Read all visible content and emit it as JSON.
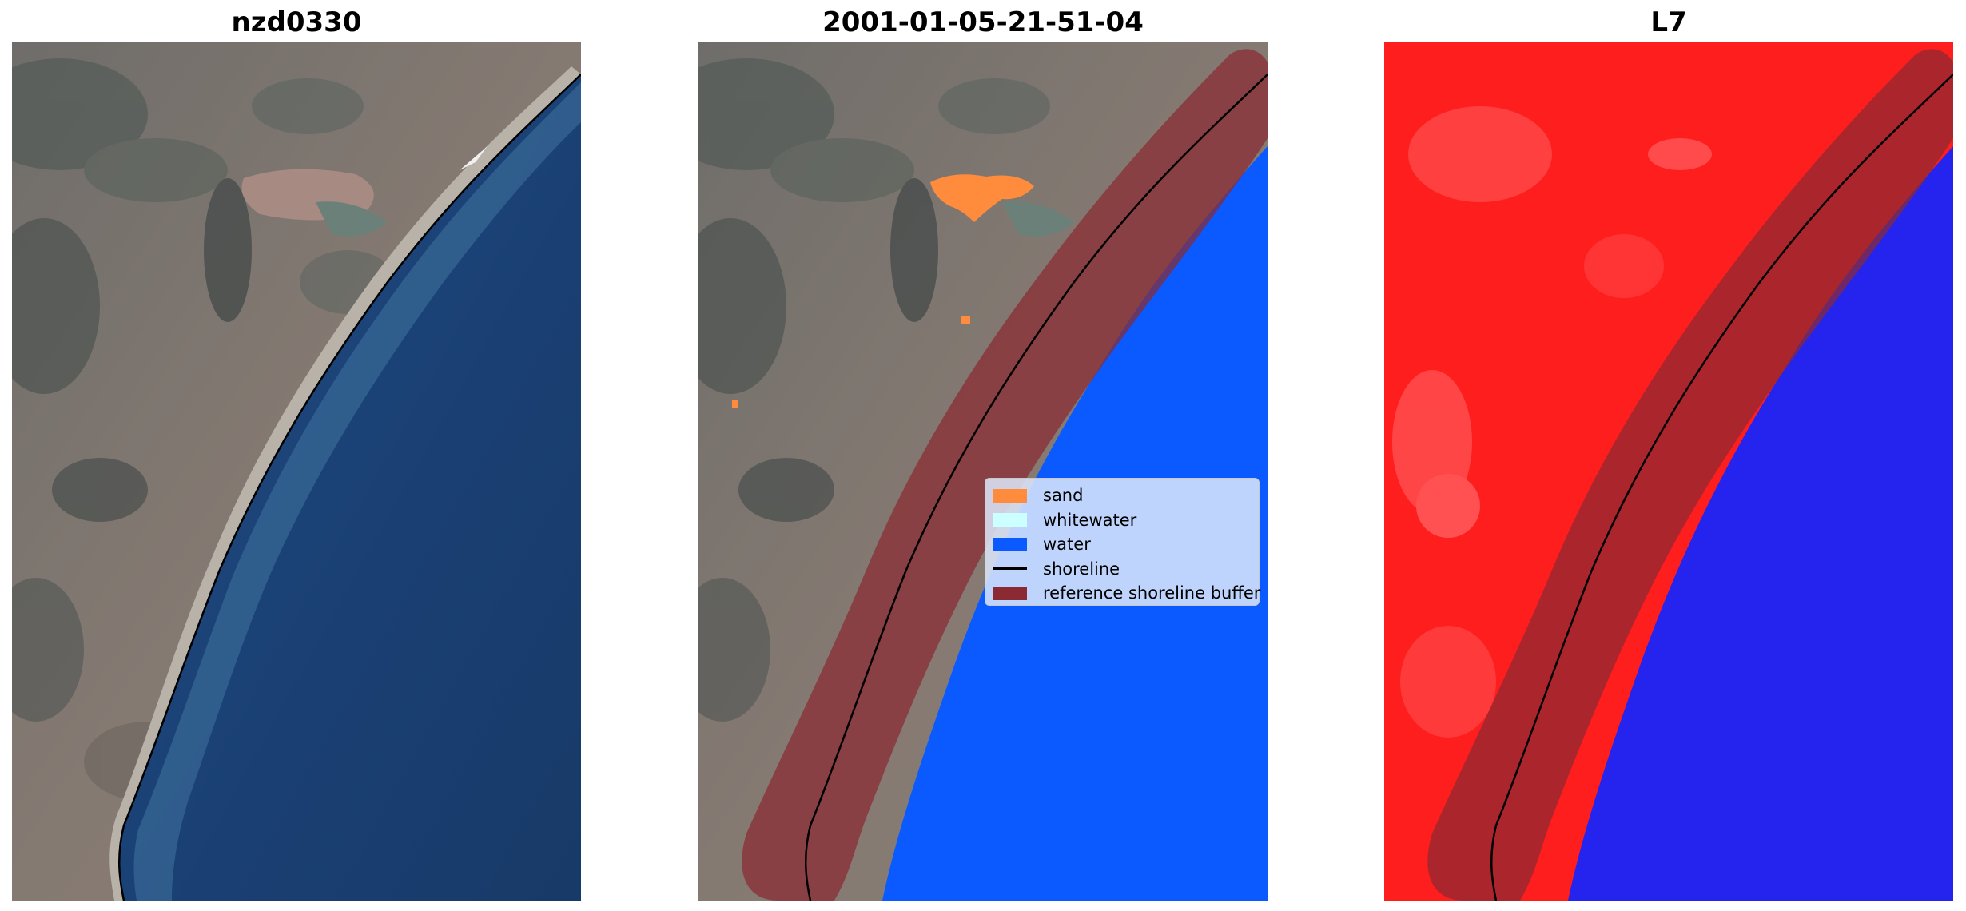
{
  "panels": [
    {
      "title": "nzd0330"
    },
    {
      "title": "2001-01-05-21-51-04"
    },
    {
      "title": "L7"
    }
  ],
  "legend": {
    "items": [
      {
        "label": "sand",
        "color": "#ff8c3c",
        "kind": "patch"
      },
      {
        "label": "whitewater",
        "color": "#ccffff",
        "kind": "patch"
      },
      {
        "label": "water",
        "color": "#0a5aff",
        "kind": "patch"
      },
      {
        "label": "shoreline",
        "color": "#000000",
        "kind": "line"
      },
      {
        "label": "reference shoreline buffer",
        "color": "#8b2a32",
        "kind": "patch"
      }
    ]
  },
  "colors": {
    "land": "#7b7068",
    "ocean": "#1d4c82",
    "classified_water": "#0a5aff",
    "sand": "#ff8c3c",
    "buffer": "#8b2a32",
    "index_land": "#ff1e1e",
    "index_water": "#2424ee"
  }
}
